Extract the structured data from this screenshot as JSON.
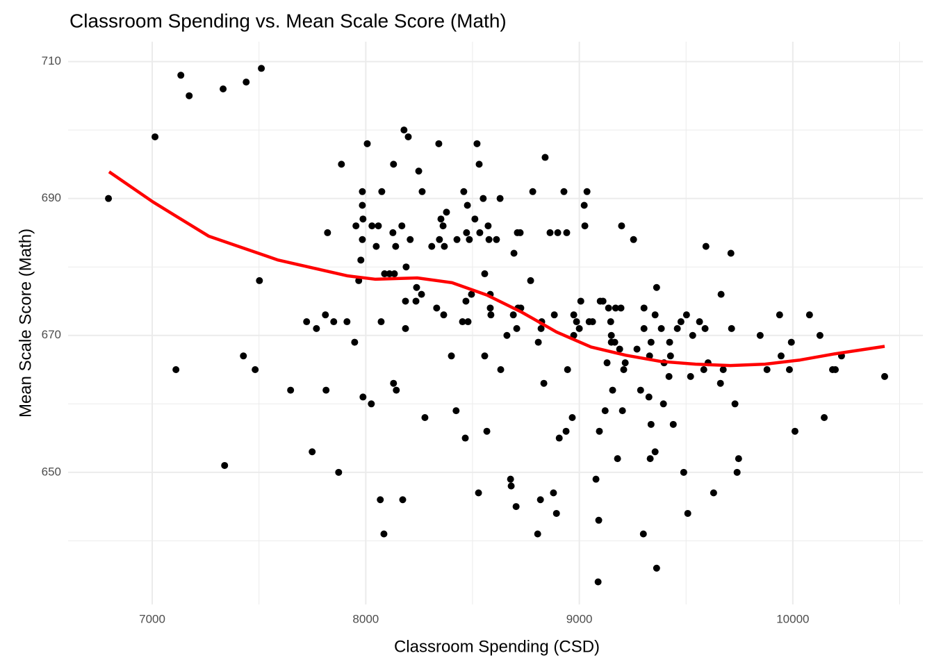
{
  "chart_data": {
    "type": "scatter",
    "title": "Classroom Spending vs. Mean Scale Score (Math)",
    "x_label": "Classroom Spending (CSD)",
    "y_label": "Mean Scale Score (Math)",
    "xlim": [
      6606,
      10609
    ],
    "ylim": [
      630.7,
      712.9
    ],
    "xticks": [
      7000,
      8000,
      9000,
      10000
    ],
    "yticks": [
      650,
      670,
      690,
      710
    ],
    "x_minor": [
      7500,
      8500,
      9500,
      10500
    ],
    "y_minor": [
      640,
      660,
      680,
      700
    ],
    "grid": true,
    "series": [
      {
        "type": "scatter",
        "color": "#000000",
        "x": [
          6795,
          7013,
          7134,
          7173,
          7111,
          7332,
          7440,
          7511,
          7339,
          7427,
          7482,
          7502,
          7648,
          7723,
          7749,
          7769,
          7811,
          7814,
          7821,
          7850,
          7873,
          7886,
          7912,
          7948,
          7954,
          7967,
          7977,
          7984,
          7984,
          7984,
          7987,
          7987,
          8007,
          8026,
          8029,
          8049,
          8059,
          8072,
          8075,
          8068,
          8085,
          8088,
          8111,
          8127,
          8130,
          8130,
          8134,
          8140,
          8143,
          8169,
          8173,
          8179,
          8186,
          8186,
          8189,
          8199,
          8208,
          8235,
          8238,
          8248,
          8261,
          8264,
          8277,
          8309,
          8332,
          8342,
          8345,
          8352,
          8362,
          8368,
          8365,
          8378,
          8401,
          8423,
          8427,
          8453,
          8459,
          8466,
          8469,
          8472,
          8476,
          8479,
          8485,
          8495,
          8511,
          8521,
          8528,
          8531,
          8534,
          8550,
          8557,
          8557,
          8567,
          8573,
          8577,
          8583,
          8586,
          8583,
          8612,
          8629,
          8632,
          8661,
          8678,
          8681,
          8691,
          8694,
          8704,
          8707,
          8710,
          8713,
          8723,
          8726,
          8772,
          8782,
          8818,
          8805,
          8808,
          8821,
          8824,
          8834,
          8840,
          8863,
          8879,
          8883,
          8893,
          8899,
          8906,
          8928,
          8941,
          8938,
          8945,
          8967,
          8974,
          8974,
          8987,
          9000,
          9007,
          9023,
          9026,
          9036,
          9046,
          9062,
          9078,
          9088,
          9091,
          9094,
          9098,
          9111,
          9121,
          9130,
          9137,
          9147,
          9150,
          9156,
          9150,
          9166,
          9170,
          9179,
          9189,
          9195,
          9202,
          9208,
          9198,
          9215,
          9254,
          9270,
          9287,
          9300,
          9303,
          9303,
          9326,
          9329,
          9332,
          9336,
          9336,
          9355,
          9355,
          9362,
          9362,
          9384,
          9394,
          9397,
          9420,
          9423,
          9427,
          9440,
          9459,
          9476,
          9489,
          9502,
          9508,
          9521,
          9531,
          9563,
          9583,
          9589,
          9593,
          9603,
          9629,
          9661,
          9664,
          9674,
          9710,
          9713,
          9729,
          9739,
          9746,
          9847,
          9879,
          9938,
          9945,
          9984,
          9993,
          10010,
          10078,
          10127,
          10147,
          10186,
          10199,
          10228,
          10430
        ],
        "values": [
          690,
          699,
          708,
          705,
          665,
          706,
          707,
          709,
          651,
          667,
          665,
          678,
          662,
          672,
          653,
          671,
          673,
          662,
          685,
          672,
          650,
          695,
          672,
          669,
          686,
          678,
          681,
          684,
          689,
          691,
          687,
          661,
          698,
          660,
          686,
          683,
          686,
          672,
          691,
          646,
          641,
          679,
          679,
          685,
          695,
          663,
          679,
          683,
          662,
          686,
          646,
          700,
          675,
          671,
          680,
          699,
          684,
          675,
          677,
          694,
          676,
          691,
          658,
          683,
          674,
          698,
          684,
          687,
          686,
          683,
          673,
          688,
          667,
          659,
          684,
          672,
          691,
          655,
          675,
          685,
          689,
          672,
          684,
          676,
          687,
          698,
          647,
          695,
          685,
          690,
          667,
          679,
          656,
          686,
          684,
          676,
          673,
          674,
          684,
          690,
          665,
          670,
          649,
          648,
          673,
          682,
          645,
          671,
          685,
          674,
          685,
          674,
          678,
          691,
          646,
          641,
          669,
          671,
          672,
          663,
          696,
          685,
          647,
          673,
          644,
          685,
          655,
          691,
          685,
          656,
          665,
          658,
          670,
          673,
          672,
          671,
          675,
          689,
          686,
          691,
          672,
          672,
          649,
          634,
          643,
          656,
          675,
          675,
          659,
          666,
          674,
          672,
          670,
          662,
          669,
          669,
          674,
          652,
          668,
          674,
          659,
          665,
          686,
          666,
          684,
          668,
          662,
          641,
          671,
          674,
          661,
          667,
          652,
          657,
          669,
          673,
          653,
          677,
          636,
          671,
          660,
          666,
          664,
          669,
          667,
          657,
          671,
          672,
          650,
          673,
          644,
          664,
          670,
          672,
          665,
          671,
          683,
          666,
          647,
          663,
          676,
          665,
          682,
          671,
          660,
          650,
          652,
          670,
          665,
          673,
          667,
          665,
          669,
          656,
          673,
          670,
          658,
          665,
          665,
          667,
          664
        ]
      },
      {
        "type": "line",
        "color": "#ff0000",
        "x": [
          6798,
          7003,
          7264,
          7590,
          7915,
          8046,
          8241,
          8404,
          8567,
          8730,
          8893,
          9055,
          9218,
          9381,
          9544,
          9707,
          9870,
          10033,
          10195,
          10430
        ],
        "values": [
          693.9,
          689.5,
          684.5,
          681,
          678.7,
          678.2,
          678.4,
          677.7,
          675.9,
          673.4,
          670.5,
          668.3,
          667.1,
          666.2,
          665.8,
          665.6,
          665.8,
          666.4,
          667.3,
          668.4
        ]
      }
    ]
  }
}
